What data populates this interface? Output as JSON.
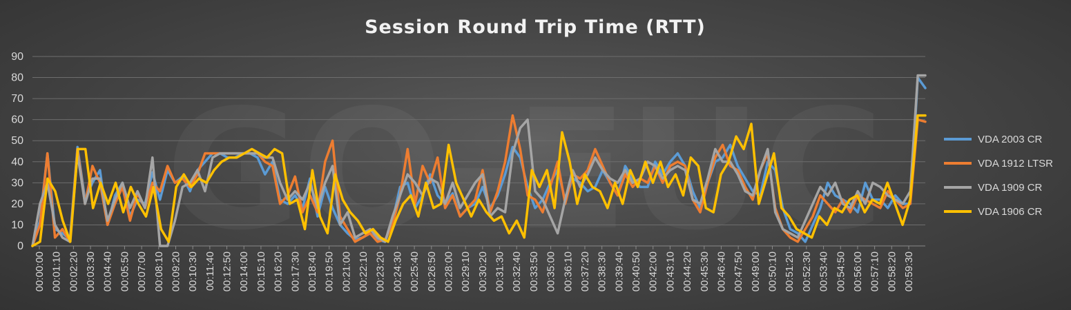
{
  "chart_data": {
    "type": "line",
    "title": "Session Round Trip Time (RTT)",
    "xlabel": "",
    "ylabel": "",
    "ylim": [
      0,
      90
    ],
    "yticks": [
      0,
      10,
      20,
      30,
      40,
      50,
      60,
      70,
      80,
      90
    ],
    "grid": true,
    "legend_position": "right",
    "x_tick_labels": [
      "00:00:00",
      "00:01:10",
      "00:02:20",
      "00:03:30",
      "00:04:40",
      "00:05:50",
      "00:07:00",
      "00:08:10",
      "00:09:20",
      "00:10:30",
      "00:11:40",
      "00:12:50",
      "00:14:00",
      "00:15:10",
      "00:16:20",
      "00:17:30",
      "00:18:40",
      "00:19:50",
      "00:21:00",
      "00:22:10",
      "00:23:20",
      "00:24:30",
      "00:25:40",
      "00:26:50",
      "00:28:00",
      "00:29:10",
      "00:30:20",
      "00:31:30",
      "00:32:40",
      "00:33:50",
      "00:35:00",
      "00:36:10",
      "00:37:20",
      "00:38:30",
      "00:39:40",
      "00:40:50",
      "00:42:00",
      "00:43:10",
      "00:44:20",
      "00:45:30",
      "00:46:40",
      "00:47:50",
      "00:49:00",
      "00:50:10",
      "00:51:20",
      "00:52:30",
      "00:53:40",
      "00:54:50",
      "00:56:00",
      "00:57:10",
      "00:58:20",
      "00:59:30"
    ],
    "series": [
      {
        "name": "VDA 2003 CR",
        "color": "#5b9bd5",
        "values": [
          0,
          12,
          44,
          8,
          6,
          3,
          47,
          22,
          30,
          36,
          10,
          24,
          30,
          14,
          22,
          20,
          35,
          22,
          36,
          30,
          33,
          26,
          36,
          40,
          44,
          44,
          42,
          42,
          44,
          44,
          42,
          34,
          40,
          22,
          20,
          24,
          18,
          32,
          14,
          28,
          18,
          10,
          6,
          3,
          4,
          6,
          3,
          2,
          12,
          28,
          30,
          18,
          24,
          34,
          24,
          20,
          25,
          14,
          18,
          20,
          28,
          18,
          24,
          34,
          47,
          42,
          28,
          18,
          22,
          30,
          36,
          22,
          32,
          30,
          26,
          28,
          36,
          30,
          24,
          38,
          32,
          28,
          28,
          40,
          34,
          40,
          44,
          38,
          26,
          18,
          30,
          40,
          42,
          48,
          38,
          32,
          26,
          24,
          40,
          36,
          18,
          8,
          6,
          2,
          10,
          18,
          30,
          24,
          22,
          20,
          16,
          30,
          22,
          22,
          18,
          24,
          20,
          20,
          80,
          75
        ]
      },
      {
        "name": "VDA 1912 LTSR",
        "color": "#ed7d31",
        "values": [
          0,
          10,
          44,
          4,
          8,
          2,
          46,
          20,
          38,
          30,
          10,
          20,
          28,
          12,
          25,
          18,
          30,
          26,
          38,
          30,
          32,
          28,
          34,
          44,
          44,
          44,
          44,
          44,
          44,
          44,
          44,
          40,
          38,
          20,
          24,
          33,
          16,
          24,
          16,
          40,
          50,
          14,
          8,
          2,
          4,
          6,
          2,
          3,
          10,
          24,
          46,
          20,
          38,
          30,
          42,
          18,
          24,
          14,
          18,
          22,
          36,
          16,
          26,
          40,
          62,
          46,
          24,
          22,
          16,
          28,
          40,
          20,
          34,
          32,
          36,
          46,
          38,
          30,
          24,
          34,
          28,
          32,
          30,
          38,
          30,
          38,
          40,
          38,
          22,
          16,
          30,
          42,
          48,
          38,
          36,
          28,
          22,
          36,
          44,
          18,
          8,
          4,
          2,
          8,
          14,
          24,
          20,
          16,
          22,
          16,
          24,
          22,
          20,
          18,
          26,
          22,
          18,
          20,
          60,
          59
        ]
      },
      {
        "name": "VDA 1909 CR",
        "color": "#a5a5a5",
        "values": [
          0,
          20,
          30,
          10,
          4,
          2,
          44,
          20,
          32,
          32,
          12,
          22,
          30,
          18,
          26,
          18,
          42,
          0,
          0,
          12,
          28,
          30,
          36,
          26,
          42,
          44,
          44,
          44,
          44,
          44,
          44,
          42,
          42,
          30,
          22,
          26,
          22,
          30,
          18,
          30,
          38,
          10,
          16,
          4,
          6,
          8,
          4,
          2,
          14,
          24,
          34,
          30,
          24,
          32,
          30,
          20,
          30,
          18,
          24,
          30,
          34,
          14,
          18,
          16,
          44,
          56,
          60,
          26,
          22,
          14,
          6,
          22,
          36,
          28,
          34,
          42,
          36,
          32,
          30,
          36,
          30,
          32,
          40,
          38,
          32,
          36,
          38,
          36,
          22,
          20,
          32,
          46,
          40,
          40,
          34,
          26,
          24,
          36,
          46,
          16,
          8,
          6,
          4,
          12,
          20,
          28,
          24,
          30,
          20,
          18,
          26,
          20,
          30,
          28,
          24,
          22,
          20,
          26,
          81,
          81
        ]
      },
      {
        "name": "VDA 1906 CR",
        "color": "#ffc000",
        "values": [
          0,
          2,
          32,
          26,
          12,
          2,
          46,
          46,
          18,
          30,
          20,
          30,
          16,
          28,
          20,
          14,
          28,
          8,
          2,
          28,
          34,
          28,
          32,
          30,
          36,
          40,
          42,
          42,
          44,
          46,
          44,
          42,
          46,
          44,
          20,
          22,
          8,
          36,
          14,
          6,
          34,
          22,
          16,
          12,
          6,
          8,
          4,
          2,
          12,
          20,
          24,
          14,
          30,
          18,
          20,
          48,
          30,
          22,
          14,
          22,
          16,
          12,
          14,
          6,
          12,
          4,
          36,
          28,
          36,
          18,
          54,
          40,
          20,
          34,
          28,
          26,
          18,
          30,
          20,
          36,
          28,
          40,
          30,
          40,
          28,
          34,
          24,
          42,
          38,
          18,
          16,
          34,
          40,
          52,
          46,
          58,
          20,
          32,
          44,
          18,
          14,
          8,
          6,
          4,
          14,
          10,
          18,
          16,
          22,
          24,
          16,
          22,
          20,
          30,
          20,
          10,
          22,
          62,
          62
        ]
      }
    ]
  },
  "watermark": "GO-EUC"
}
